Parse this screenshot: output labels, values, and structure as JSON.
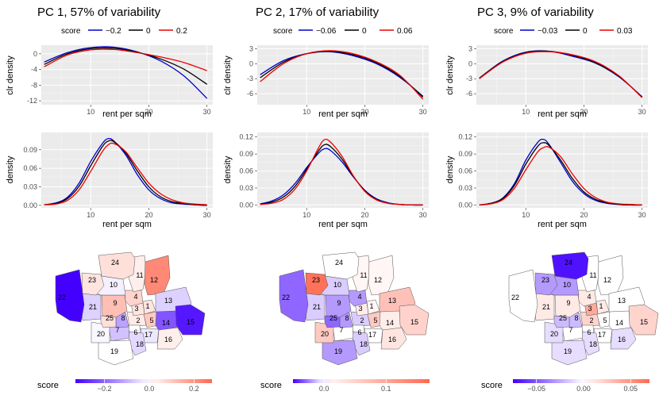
{
  "chart_data": [
    {
      "type": "line",
      "title": "PC 1, 57% of variability",
      "xlabel": "rent per sqm",
      "legend": {
        "title": "score",
        "labels": [
          "−0.2",
          "0",
          "0.2"
        ],
        "colors": [
          "#0000cc",
          "#000000",
          "#ee0000"
        ]
      },
      "clr": {
        "ylabel": "clr density",
        "xlim": [
          1.5,
          31
        ],
        "ylim": [
          -13,
          2.2
        ],
        "yticks": [
          {
            "v": 0,
            "label": "0"
          },
          {
            "v": -4,
            "label": "-4"
          },
          {
            "v": -8,
            "label": "-8"
          },
          {
            "v": -12,
            "label": "-12"
          }
        ],
        "xticks": [
          {
            "v": 10,
            "label": "10"
          },
          {
            "v": 20,
            "label": "20"
          },
          {
            "v": 30,
            "label": "30"
          }
        ],
        "x": [
          2,
          6,
          10,
          14,
          18,
          22,
          26,
          30
        ],
        "series": [
          {
            "name": "−0.2",
            "values": [
              -2.1,
              0.3,
              1.6,
              1.7,
              0.5,
              -1.8,
              -5.6,
              -11.4
            ]
          },
          {
            "name": "0",
            "values": [
              -2.7,
              0.0,
              1.3,
              1.4,
              0.4,
              -1.3,
              -3.9,
              -7.8
            ]
          },
          {
            "name": "0.2",
            "values": [
              -3.3,
              -0.3,
              1.0,
              1.1,
              0.3,
              -0.8,
              -2.2,
              -4.3
            ]
          }
        ]
      },
      "density": {
        "ylabel": "density",
        "xlim": [
          1.5,
          31
        ],
        "ylim": [
          -0.004,
          0.118
        ],
        "yticks": [
          {
            "v": 0,
            "label": "0.00"
          },
          {
            "v": 0.03,
            "label": "0.03"
          },
          {
            "v": 0.06,
            "label": "0.06"
          },
          {
            "v": 0.09,
            "label": "0.09"
          }
        ],
        "xticks": [
          {
            "v": 10,
            "label": "10"
          },
          {
            "v": 20,
            "label": "20"
          },
          {
            "v": 30,
            "label": "30"
          }
        ],
        "x": [
          2,
          4,
          6,
          8,
          10,
          12,
          13,
          14,
          16,
          18,
          20,
          22,
          24,
          26,
          28,
          30
        ],
        "series": [
          {
            "name": "−0.2",
            "values": [
              0.001,
              0.004,
              0.013,
              0.036,
              0.071,
              0.1,
              0.108,
              0.104,
              0.082,
              0.05,
              0.025,
              0.011,
              0.004,
              0.002,
              0.001,
              0.0
            ]
          },
          {
            "name": "0",
            "values": [
              0.001,
              0.003,
              0.011,
              0.031,
              0.064,
              0.095,
              0.104,
              0.103,
              0.085,
              0.056,
              0.03,
              0.014,
              0.006,
              0.003,
              0.001,
              0.0
            ]
          },
          {
            "name": "0.2",
            "values": [
              0.001,
              0.002,
              0.008,
              0.025,
              0.055,
              0.087,
              0.098,
              0.1,
              0.087,
              0.061,
              0.036,
              0.019,
              0.009,
              0.004,
              0.002,
              0.001
            ]
          }
        ]
      },
      "map": {
        "legend_title": "score",
        "range": [
          -0.33,
          0.28
        ],
        "ticks": [
          {
            "v": -0.2,
            "label": "−0.2"
          },
          {
            "v": 0.0,
            "label": "0.0"
          },
          {
            "v": 0.2,
            "label": "0.2"
          }
        ],
        "scores": {
          "1": 0.05,
          "2": 0.04,
          "3": 0.05,
          "4": 0.08,
          "5": 0.1,
          "6": 0.0,
          "7": -0.08,
          "8": -0.12,
          "9": 0.12,
          "10": -0.02,
          "11": 0.03,
          "12": 0.22,
          "13": -0.06,
          "14": -0.22,
          "15": -0.3,
          "16": 0.03,
          "17": -0.03,
          "18": -0.05,
          "19": 0.0,
          "20": -0.01,
          "21": -0.06,
          "22": -0.33,
          "23": 0.05,
          "24": 0.06,
          "25": 0.06
        }
      }
    },
    {
      "type": "line",
      "title": "PC 2, 17% of variability",
      "xlabel": "rent per sqm",
      "legend": {
        "title": "score",
        "labels": [
          "−0.06",
          "0",
          "0.06"
        ],
        "colors": [
          "#0000cc",
          "#000000",
          "#ee0000"
        ]
      },
      "clr": {
        "ylabel": "clr density",
        "xlim": [
          1.5,
          31
        ],
        "ylim": [
          -8.2,
          3.7
        ],
        "yticks": [
          {
            "v": 3,
            "label": "3"
          },
          {
            "v": 0,
            "label": "0"
          },
          {
            "v": -3,
            "label": "-3"
          },
          {
            "v": -6,
            "label": "-6"
          }
        ],
        "xticks": [
          {
            "v": 10,
            "label": "10"
          },
          {
            "v": 20,
            "label": "20"
          },
          {
            "v": 30,
            "label": "30"
          }
        ],
        "x": [
          2,
          6,
          10,
          14,
          18,
          22,
          26,
          30
        ],
        "series": [
          {
            "name": "−0.06",
            "values": [
              -2.2,
              0.6,
              2.0,
              2.4,
              1.6,
              0.0,
              -2.7,
              -6.5
            ]
          },
          {
            "name": "0",
            "values": [
              -2.8,
              0.3,
              2.0,
              2.5,
              1.8,
              0.2,
              -2.5,
              -6.7
            ]
          },
          {
            "name": "0.06",
            "values": [
              -3.6,
              0.0,
              2.0,
              2.6,
              2.0,
              0.4,
              -2.3,
              -7.1
            ]
          }
        ]
      },
      "density": {
        "ylabel": "density",
        "xlim": [
          1.5,
          31
        ],
        "ylim": [
          -0.005,
          0.128
        ],
        "yticks": [
          {
            "v": 0,
            "label": "0.00"
          },
          {
            "v": 0.03,
            "label": "0.03"
          },
          {
            "v": 0.06,
            "label": "0.06"
          },
          {
            "v": 0.09,
            "label": "0.09"
          },
          {
            "v": 0.12,
            "label": "0.12"
          }
        ],
        "xticks": [
          {
            "v": 10,
            "label": "10"
          },
          {
            "v": 20,
            "label": "20"
          },
          {
            "v": 30,
            "label": "30"
          }
        ],
        "x": [
          2,
          4,
          6,
          8,
          10,
          12,
          13,
          14,
          16,
          18,
          20,
          22,
          24,
          26,
          28,
          30
        ],
        "series": [
          {
            "name": "−0.06",
            "values": [
              0.002,
              0.007,
              0.018,
              0.038,
              0.066,
              0.091,
              0.099,
              0.097,
              0.077,
              0.05,
              0.026,
              0.011,
              0.004,
              0.001,
              0.0,
              0.0
            ]
          },
          {
            "name": "0",
            "values": [
              0.001,
              0.005,
              0.014,
              0.033,
              0.063,
              0.095,
              0.106,
              0.104,
              0.082,
              0.051,
              0.025,
              0.01,
              0.003,
              0.001,
              0.0,
              0.0
            ]
          },
          {
            "name": "0.06",
            "values": [
              0.001,
              0.003,
              0.01,
              0.028,
              0.06,
              0.1,
              0.115,
              0.112,
              0.087,
              0.052,
              0.024,
              0.009,
              0.003,
              0.001,
              0.0,
              0.0
            ]
          }
        ]
      },
      "map": {
        "legend_title": "score",
        "range": [
          -0.05,
          0.17
        ],
        "ticks": [
          {
            "v": 0.0,
            "label": "0.0"
          },
          {
            "v": 0.1,
            "label": "0.1"
          }
        ],
        "scores": {
          "1": 0.01,
          "2": -0.01,
          "3": 0.02,
          "4": -0.02,
          "5": 0.06,
          "6": 0.0,
          "7": 0.0,
          "8": -0.02,
          "9": -0.02,
          "10": -0.01,
          "11": 0.01,
          "12": 0.01,
          "13": 0.07,
          "14": 0.02,
          "15": 0.05,
          "16": 0.03,
          "17": 0.0,
          "18": -0.01,
          "19": -0.02,
          "20": 0.06,
          "21": -0.01,
          "22": -0.03,
          "23": 0.16,
          "24": 0.0,
          "25": -0.03
        }
      }
    },
    {
      "type": "line",
      "title": "PC 3, 9% of variability",
      "xlabel": "rent per sqm",
      "legend": {
        "title": "score",
        "labels": [
          "−0.03",
          "0",
          "0.03"
        ],
        "colors": [
          "#0000cc",
          "#000000",
          "#ee0000"
        ]
      },
      "clr": {
        "ylabel": "clr density",
        "xlim": [
          1.5,
          31
        ],
        "ylim": [
          -8.2,
          3.7
        ],
        "yticks": [
          {
            "v": 3,
            "label": "3"
          },
          {
            "v": 0,
            "label": "0"
          },
          {
            "v": -3,
            "label": "-3"
          },
          {
            "v": -6,
            "label": "-6"
          }
        ],
        "xticks": [
          {
            "v": 10,
            "label": "10"
          },
          {
            "v": 20,
            "label": "20"
          },
          {
            "v": 30,
            "label": "30"
          }
        ],
        "x": [
          2,
          6,
          10,
          14,
          18,
          22,
          26,
          30
        ],
        "series": [
          {
            "name": "−0.03",
            "values": [
              -2.9,
              0.5,
              2.3,
              2.5,
              1.5,
              0.1,
              -2.6,
              -6.6
            ]
          },
          {
            "name": "0",
            "values": [
              -2.9,
              0.4,
              2.2,
              2.5,
              1.7,
              0.2,
              -2.5,
              -6.7
            ]
          },
          {
            "name": "0.03",
            "values": [
              -3.0,
              0.3,
              2.1,
              2.4,
              1.8,
              0.4,
              -2.4,
              -6.8
            ]
          }
        ]
      },
      "density": {
        "ylabel": "density",
        "xlim": [
          1.5,
          31
        ],
        "ylim": [
          -0.005,
          0.128
        ],
        "yticks": [
          {
            "v": 0,
            "label": "0.00"
          },
          {
            "v": 0.03,
            "label": "0.03"
          },
          {
            "v": 0.06,
            "label": "0.06"
          },
          {
            "v": 0.09,
            "label": "0.09"
          },
          {
            "v": 0.12,
            "label": "0.12"
          }
        ],
        "xticks": [
          {
            "v": 10,
            "label": "10"
          },
          {
            "v": 20,
            "label": "20"
          },
          {
            "v": 30,
            "label": "30"
          }
        ],
        "x": [
          2,
          4,
          6,
          8,
          10,
          12,
          13,
          14,
          16,
          18,
          20,
          22,
          24,
          26,
          28,
          30
        ],
        "series": [
          {
            "name": "−0.03",
            "values": [
              0.0,
              0.003,
              0.012,
              0.037,
              0.079,
              0.11,
              0.116,
              0.107,
              0.075,
              0.042,
              0.02,
              0.008,
              0.003,
              0.001,
              0.0,
              0.0
            ]
          },
          {
            "name": "0",
            "values": [
              0.0,
              0.003,
              0.011,
              0.034,
              0.072,
              0.103,
              0.11,
              0.105,
              0.079,
              0.047,
              0.023,
              0.01,
              0.004,
              0.001,
              0.0,
              0.0
            ]
          },
          {
            "name": "0.03",
            "values": [
              0.0,
              0.002,
              0.009,
              0.029,
              0.062,
              0.093,
              0.101,
              0.102,
              0.085,
              0.055,
              0.029,
              0.013,
              0.005,
              0.002,
              0.001,
              0.0
            ]
          }
        ]
      },
      "map": {
        "legend_title": "score",
        "range": [
          -0.075,
          0.07
        ],
        "ticks": [
          {
            "v": -0.05,
            "label": "−0.05"
          },
          {
            "v": 0.0,
            "label": "0.00"
          },
          {
            "v": 0.05,
            "label": "0.05"
          }
        ],
        "scores": {
          "1": 0.01,
          "2": 0.02,
          "3": 0.04,
          "4": 0.01,
          "5": 0.0,
          "6": 0.0,
          "7": 0.0,
          "8": -0.02,
          "9": 0.01,
          "10": -0.03,
          "11": 0.0,
          "12": 0.0,
          "13": 0.0,
          "14": 0.0,
          "15": 0.02,
          "16": -0.01,
          "17": 0.0,
          "18": -0.01,
          "19": -0.01,
          "20": -0.01,
          "21": 0.01,
          "22": 0.0,
          "23": -0.03,
          "24": -0.07,
          "25": -0.02
        }
      }
    }
  ]
}
